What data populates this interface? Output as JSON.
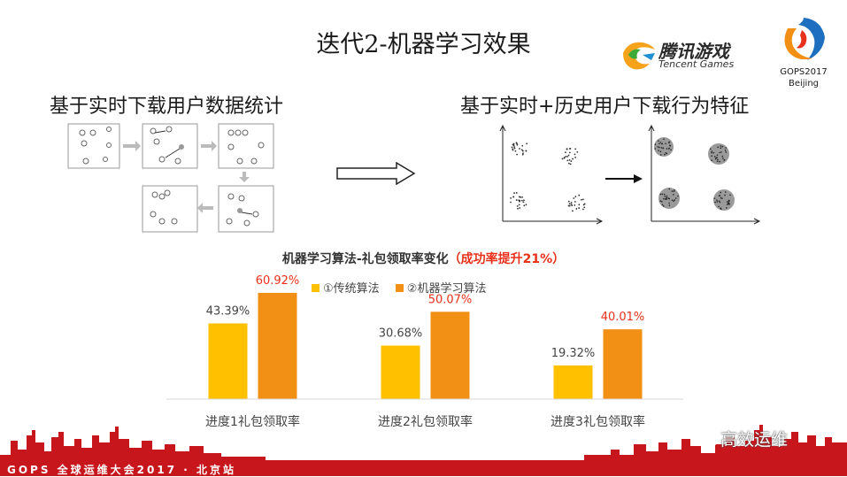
{
  "slide": {
    "title": "迭代2-机器学习效果",
    "subtitle_left": "基于实时下载用户数据统计",
    "subtitle_right": "基于实时+历史用户下载行为特征"
  },
  "logos": {
    "tencent_cn": "腾讯游戏",
    "tencent_en": "Tencent Games",
    "gops_line1": "GOPS2017",
    "gops_line2": "Beijing"
  },
  "chart_title": {
    "main": "机器学习算法-礼包领取率变化",
    "highlight": "（成功率提升21%）"
  },
  "chart_data": {
    "type": "bar",
    "categories": [
      "进度1礼包领取率",
      "进度2礼包领取率",
      "进度3礼包领取率"
    ],
    "series": [
      {
        "name": "①传统算法",
        "values": [
          43.39,
          30.68,
          19.32
        ],
        "labels": [
          "43.39%",
          "30.68%",
          "19.32%"
        ],
        "color": "#ffc000",
        "label_color": "#444444"
      },
      {
        "name": "②机器学习算法",
        "values": [
          60.92,
          50.07,
          40.01
        ],
        "labels": [
          "60.92%",
          "50.07%",
          "40.01%"
        ],
        "color": "#f29016",
        "label_color": "#e8311a"
      }
    ],
    "ylim": [
      0,
      70
    ],
    "grid": false,
    "legend_position": "top"
  },
  "footer": {
    "text": "GOPS 全球运维大会2017 · 北京站",
    "watermark": "高效运维"
  },
  "colors": {
    "accent_red": "#e8311a",
    "skyline_red": "#c8161d"
  }
}
